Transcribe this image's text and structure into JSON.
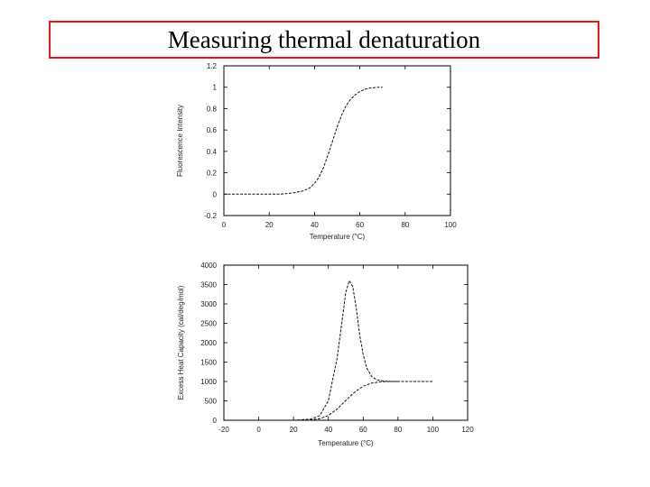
{
  "slide": {
    "title": "Measuring thermal denaturation"
  },
  "chart_data": [
    {
      "type": "line",
      "xlabel": "Temperature (°C)",
      "ylabel": "Fluorescence Intensity",
      "xlim": [
        0,
        100
      ],
      "ylim": [
        -0.2,
        1.2
      ],
      "xticks": [
        0,
        20,
        40,
        60,
        80,
        100
      ],
      "xtick_labels": [
        "0",
        "20",
        "40",
        "60",
        "80",
        "100"
      ],
      "yticks": [
        -0.2,
        0,
        0.2,
        0.4,
        0.6,
        0.8,
        1,
        1.2
      ],
      "ytick_labels": [
        "-0.2",
        "0",
        "0.2",
        "0.4",
        "0.6",
        "0.8",
        "1",
        "1.2"
      ],
      "grid": false,
      "series": [
        {
          "x": [
            0,
            10,
            20,
            25,
            30,
            35,
            38,
            40,
            42,
            44,
            46,
            48,
            50,
            52,
            54,
            56,
            58,
            60,
            62,
            64,
            66,
            68,
            70
          ],
          "y": [
            0.0,
            0.0,
            0.0,
            0.0,
            0.01,
            0.03,
            0.06,
            0.1,
            0.16,
            0.25,
            0.37,
            0.5,
            0.63,
            0.74,
            0.83,
            0.89,
            0.93,
            0.96,
            0.98,
            0.99,
            0.995,
            1.0,
            1.0
          ]
        }
      ]
    },
    {
      "type": "line",
      "xlabel": "Temperature (°C)",
      "ylabel": "Excess Heat Capacity (cal/deg/mol)",
      "xlim": [
        -20,
        120
      ],
      "ylim": [
        0,
        4000
      ],
      "xticks": [
        -20,
        0,
        20,
        40,
        60,
        80,
        100,
        120
      ],
      "xtick_labels": [
        "-20",
        "0",
        "20",
        "40",
        "60",
        "80",
        "100",
        "120"
      ],
      "yticks": [
        0,
        500,
        1000,
        1500,
        2000,
        2500,
        3000,
        3500,
        4000
      ],
      "ytick_labels": [
        "0",
        "500",
        "1000",
        "1500",
        "2000",
        "2500",
        "3000",
        "3500",
        "4000"
      ],
      "grid": false,
      "series": [
        {
          "x": [
            20,
            30,
            35,
            40,
            45,
            48,
            50,
            52,
            54,
            56,
            58,
            60,
            62,
            65,
            68,
            72,
            76,
            80,
            90,
            100
          ],
          "y": [
            0,
            30,
            120,
            500,
            1600,
            2600,
            3300,
            3600,
            3450,
            2900,
            2200,
            1700,
            1350,
            1120,
            1040,
            1010,
            1000,
            1000,
            1000,
            1000
          ]
        },
        {
          "x": [
            20,
            30,
            35,
            40,
            45,
            50,
            55,
            60,
            65,
            70,
            75,
            80
          ],
          "y": [
            0,
            10,
            40,
            120,
            290,
            510,
            720,
            880,
            960,
            990,
            1000,
            1000
          ]
        }
      ]
    }
  ]
}
